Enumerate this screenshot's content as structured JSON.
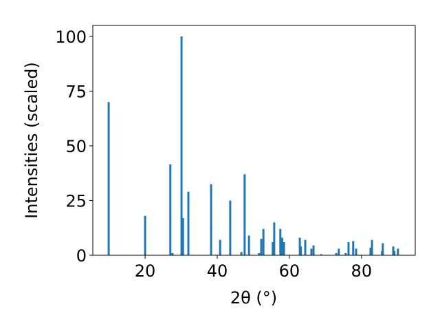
{
  "chart_data": {
    "type": "bar",
    "xlabel": "2θ (°)",
    "ylabel": "Intensities (scaled)",
    "x": [
      9.9,
      20.0,
      27.0,
      27.6,
      30.1,
      30.5,
      32.0,
      38.3,
      40.8,
      43.6,
      46.7,
      47.6,
      48.8,
      51.6,
      52.2,
      52.8,
      55.4,
      55.8,
      57.5,
      58.0,
      58.5,
      62.9,
      63.2,
      64.4,
      66.1,
      66.7,
      68.8,
      73.0,
      73.7,
      75.6,
      76.4,
      77.7,
      78.5,
      82.5,
      82.9,
      85.7,
      85.9,
      88.8,
      89.1,
      90.1
    ],
    "values": [
      70,
      18,
      41.5,
      1,
      100,
      17,
      29,
      32.5,
      7,
      25,
      1.5,
      37,
      9,
      1,
      7.5,
      12,
      6,
      15,
      12,
      8,
      6,
      8,
      4,
      7,
      3,
      4.5,
      0.5,
      1,
      3,
      1,
      6,
      6.5,
      3,
      3.5,
      7,
      2,
      5.5,
      4,
      2,
      3
    ],
    "color": "#1f77b4",
    "xlim": [
      5.5,
      94.9
    ],
    "ylim": [
      0,
      105
    ],
    "xticks": [
      20,
      40,
      60,
      80
    ],
    "yticks": [
      0,
      25,
      50,
      75,
      100
    ]
  }
}
